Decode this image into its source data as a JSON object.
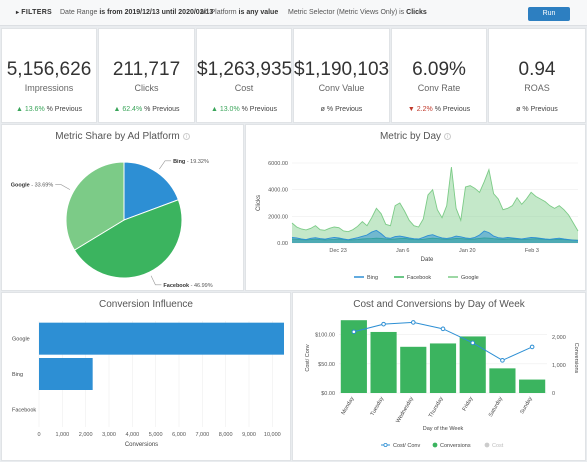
{
  "filters": {
    "label": "FILTERS",
    "date_prefix": "Date Range",
    "date_text": "is from 2019/12/13 until 2020/02/13",
    "platform_prefix": "Ad Platform",
    "platform_text": "is any value",
    "metric_prefix": "Metric Selector (Metric Views Only)",
    "metric_is": "is",
    "metric_value": "Clicks",
    "run_label": "Run"
  },
  "kpis": [
    {
      "value": "5,156,626",
      "label": "Impressions",
      "arrow": "▲",
      "change": "13.6%",
      "suffix": "% Previous",
      "dir": "up"
    },
    {
      "value": "211,717",
      "label": "Clicks",
      "arrow": "▲",
      "change": "62.4%",
      "suffix": "% Previous",
      "dir": "up"
    },
    {
      "value": "$1,263,935",
      "label": "Cost",
      "arrow": "▲",
      "change": "13.0%",
      "suffix": "% Previous",
      "dir": "up"
    },
    {
      "value": "$1,190,103",
      "label": "Conv Value",
      "arrow": "ø",
      "change": "",
      "suffix": "% Previous",
      "dir": "none"
    },
    {
      "value": "6.09%",
      "label": "Conv Rate",
      "arrow": "▼",
      "change": "2.2%",
      "suffix": "% Previous",
      "dir": "down"
    },
    {
      "value": "0.94",
      "label": "ROAS",
      "arrow": "ø",
      "change": "",
      "suffix": "% Previous",
      "dir": "none"
    }
  ],
  "colors": {
    "bing": "#2d8fd4",
    "facebook": "#3bb45f",
    "google": "#7ccb87",
    "accent": "#2d7fc1"
  },
  "chart_data": [
    {
      "type": "pie",
      "title": "Metric Share by Ad Platform",
      "slices": [
        {
          "label": "Bing",
          "value": 19.32,
          "text": "19.32%"
        },
        {
          "label": "Facebook",
          "value": 46.99,
          "text": "46.99%"
        },
        {
          "label": "Google",
          "value": 33.69,
          "text": "33.69%"
        }
      ]
    },
    {
      "type": "area",
      "title": "Metric by Day",
      "xlabel": "Date",
      "ylabel": "Clicks",
      "ylim": [
        0,
        6000
      ],
      "yticks": [
        "0.00",
        "2000.00",
        "4000.00",
        "6000.00"
      ],
      "xticks": [
        "Dec 23",
        "Jan 6",
        "Jan 20",
        "Feb 3"
      ],
      "x_range": [
        "2019-12-13",
        "2020-02-13"
      ],
      "series": [
        {
          "name": "Bing",
          "values": [
            420,
            380,
            300,
            260,
            350,
            400,
            330,
            290,
            360,
            420,
            380,
            300,
            250,
            320,
            400,
            500,
            600,
            820,
            950,
            700,
            400,
            350,
            480,
            520,
            450,
            380,
            320,
            300,
            420,
            560,
            620,
            480,
            380,
            340,
            400,
            520,
            460,
            380,
            340,
            420,
            600,
            900,
            780,
            520,
            400,
            360,
            420,
            380,
            340,
            300,
            360,
            420,
            400,
            350,
            300,
            280,
            320,
            360,
            300,
            260,
            220,
            200
          ]
        },
        {
          "name": "Facebook",
          "values": [
            300,
            280,
            250,
            230,
            260,
            290,
            260,
            230,
            250,
            270,
            300,
            260,
            220,
            240,
            260,
            300,
            320,
            330,
            360,
            340,
            300,
            280,
            300,
            330,
            350,
            300,
            270,
            250,
            280,
            320,
            360,
            330,
            300,
            280,
            300,
            340,
            330,
            300,
            280,
            300,
            340,
            380,
            360,
            320,
            300,
            280,
            300,
            310,
            290,
            270,
            280,
            300,
            320,
            300,
            270,
            250,
            260,
            280,
            260,
            240,
            220,
            200
          ]
        },
        {
          "name": "Google",
          "values": [
            1500,
            1200,
            1050,
            980,
            1100,
            1300,
            1000,
            950,
            1100,
            1200,
            1150,
            900,
            850,
            1000,
            1250,
            1600,
            1300,
            1900,
            2600,
            2200,
            1400,
            1300,
            2800,
            3000,
            2400,
            1700,
            1300,
            1200,
            1800,
            3600,
            4000,
            2500,
            1900,
            2800,
            5700,
            2600,
            1700,
            4200,
            4300,
            4100,
            3800,
            4600,
            5500,
            3700,
            3300,
            2500,
            2600,
            2800,
            3400,
            2900,
            3300,
            3800,
            3500,
            3300,
            3100,
            2800,
            2600,
            2800,
            2500,
            2100,
            1500,
            900
          ]
        }
      ]
    },
    {
      "type": "bar",
      "orientation": "horizontal",
      "title": "Conversion Influence",
      "xlabel": "Conversions",
      "categories": [
        "Google",
        "Bing",
        "Facebook"
      ],
      "values": [
        10500,
        2300,
        0
      ],
      "xlim": [
        0,
        10500
      ],
      "xticks": [
        "0",
        "1,000",
        "2,000",
        "3,000",
        "4,000",
        "5,000",
        "6,000",
        "7,000",
        "8,000",
        "9,000",
        "10,000"
      ]
    },
    {
      "type": "bar",
      "title": "Cost and Conversions by Day of Week",
      "xlabel": "Day of the Week",
      "ylabel": "Cost/ Conv",
      "ylabel_right": "Conversions",
      "categories": [
        "Monday",
        "Tuesday",
        "Wednesday",
        "Thursday",
        "Friday",
        "Saturday",
        "Sunday"
      ],
      "yticks_left": [
        "$0.00",
        "$50.00",
        "$100.00"
      ],
      "yticks_right": [
        "0",
        "1,000",
        "2,000"
      ],
      "series": [
        {
          "name": "Conversions",
          "axis": "right",
          "values": [
            2600,
            2180,
            1650,
            1770,
            2020,
            880,
            480
          ]
        },
        {
          "name": "Cost/ Conv",
          "axis": "left",
          "values": [
            105,
            118,
            121,
            110,
            86,
            56,
            79
          ]
        }
      ],
      "y_left_lim": [
        0,
        120
      ],
      "y_right_lim": [
        0,
        2500
      ],
      "legend": [
        {
          "label": "Cost/ Conv",
          "kind": "line"
        },
        {
          "label": "Conversions",
          "kind": "dot"
        },
        {
          "label": "Cost",
          "kind": "dot-muted"
        }
      ]
    }
  ]
}
